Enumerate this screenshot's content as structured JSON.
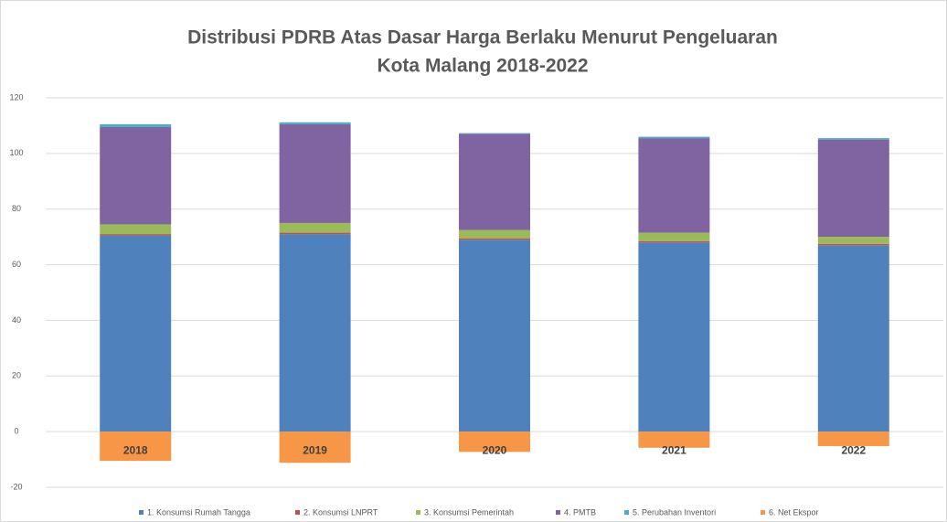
{
  "chart_data": {
    "type": "bar",
    "stacked": true,
    "title": [
      "Distribusi PDRB Atas Dasar Harga Berlaku Menurut Pengeluaran",
      "Kota Malang 2018-2022"
    ],
    "categories": [
      "2018",
      "2019",
      "2020",
      "2021",
      "2022"
    ],
    "series": [
      {
        "name": "1. Konsumsi Rumah Tangga",
        "color": "#4f81bd",
        "values": [
          70.5,
          71,
          69,
          68,
          67
        ]
      },
      {
        "name": "2. Konsumsi LNPRT",
        "color": "#c0504d",
        "values": [
          0.5,
          0.5,
          0.5,
          0.5,
          0.5
        ]
      },
      {
        "name": "3. Konsumsi Pemerintah",
        "color": "#9bbb59",
        "values": [
          3.5,
          3.5,
          3,
          3,
          2.5
        ]
      },
      {
        "name": "4. PMTB",
        "color": "#8064a2",
        "values": [
          35,
          35.5,
          34.5,
          34,
          35
        ]
      },
      {
        "name": "5. Perubahan Inventori",
        "color": "#4bacc6",
        "values": [
          1,
          0.7,
          0.3,
          0.5,
          0.5
        ]
      },
      {
        "name": "6. Net Ekspor",
        "color": "#f79646",
        "values": [
          -10.5,
          -11.2,
          -7.3,
          -5.8,
          -5.2
        ]
      }
    ],
    "ylim": [
      -20,
      120
    ],
    "yticks": [
      -20,
      0,
      20,
      40,
      60,
      80,
      100,
      120
    ],
    "grid": true
  }
}
